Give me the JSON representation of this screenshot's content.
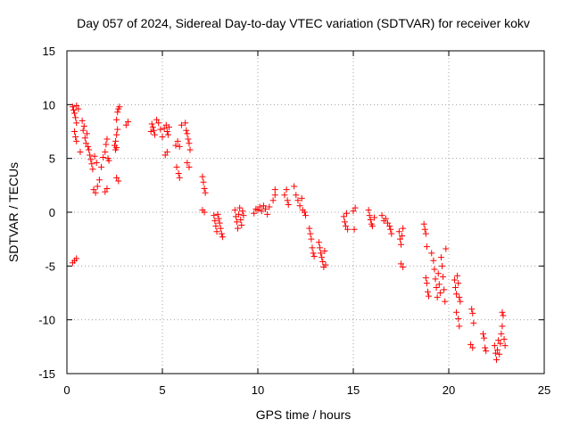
{
  "chart_data": {
    "type": "scatter",
    "title": "Day 057 of 2024, Sidereal Day-to-day VTEC variation (SDTVAR) for receiver kokv",
    "xlabel": "GPS time / hours",
    "ylabel": "SDTVAR / TECUs",
    "xlim": [
      0,
      25
    ],
    "ylim": [
      -15,
      15
    ],
    "xticks": [
      0,
      5,
      10,
      15,
      20,
      25
    ],
    "xtick_labels": [
      "0",
      "5",
      "10",
      "15",
      "20",
      "25"
    ],
    "yticks": [
      15,
      10,
      5,
      0,
      -5,
      -10,
      -15
    ],
    "ytick_labels": [
      "15",
      "10",
      "5",
      "0",
      "-5",
      "-10",
      "-15"
    ],
    "grid": true,
    "marker": "+",
    "color": "#ff0000",
    "series": [
      {
        "name": "SDTVAR",
        "points": [
          [
            0.3,
            9.8
          ],
          [
            0.35,
            9.5
          ],
          [
            0.4,
            9.2
          ],
          [
            0.45,
            8.8
          ],
          [
            0.5,
            8.3
          ],
          [
            0.4,
            7.5
          ],
          [
            0.45,
            7.0
          ],
          [
            0.5,
            6.6
          ],
          [
            0.5,
            9.9
          ],
          [
            0.6,
            9.6
          ],
          [
            0.3,
            -4.7
          ],
          [
            0.4,
            -4.5
          ],
          [
            0.5,
            -4.3
          ],
          [
            0.7,
            5.6
          ],
          [
            0.8,
            8.5
          ],
          [
            0.9,
            8.0
          ],
          [
            0.85,
            7.6
          ],
          [
            0.95,
            6.9
          ],
          [
            1.0,
            6.4
          ],
          [
            1.05,
            7.3
          ],
          [
            1.1,
            6.1
          ],
          [
            1.15,
            5.8
          ],
          [
            1.2,
            5.3
          ],
          [
            1.25,
            4.9
          ],
          [
            1.3,
            4.5
          ],
          [
            1.35,
            4.0
          ],
          [
            1.4,
            2.1
          ],
          [
            1.5,
            1.8
          ],
          [
            1.45,
            5.2
          ],
          [
            1.55,
            4.6
          ],
          [
            1.6,
            2.4
          ],
          [
            1.7,
            3.0
          ],
          [
            1.8,
            4.2
          ],
          [
            1.9,
            5.1
          ],
          [
            2.0,
            5.6
          ],
          [
            2.05,
            6.3
          ],
          [
            2.1,
            6.8
          ],
          [
            2.0,
            1.9
          ],
          [
            2.1,
            2.2
          ],
          [
            2.15,
            5.0
          ],
          [
            2.2,
            4.8
          ],
          [
            2.5,
            6.2
          ],
          [
            2.55,
            6.6
          ],
          [
            2.6,
            7.2
          ],
          [
            2.65,
            7.7
          ],
          [
            2.6,
            8.6
          ],
          [
            2.65,
            9.3
          ],
          [
            2.7,
            9.6
          ],
          [
            2.75,
            9.8
          ],
          [
            2.6,
            3.2
          ],
          [
            2.7,
            2.9
          ],
          [
            2.55,
            5.8
          ],
          [
            2.6,
            6.0
          ],
          [
            3.1,
            8.1
          ],
          [
            3.2,
            8.4
          ],
          [
            4.4,
            7.5
          ],
          [
            4.45,
            8.2
          ],
          [
            4.5,
            7.9
          ],
          [
            4.55,
            7.6
          ],
          [
            4.6,
            7.2
          ],
          [
            4.7,
            8.6
          ],
          [
            4.8,
            8.3
          ],
          [
            4.9,
            7.7
          ],
          [
            5.0,
            7.0
          ],
          [
            5.1,
            7.8
          ],
          [
            5.2,
            8.1
          ],
          [
            5.25,
            7.5
          ],
          [
            5.3,
            7.2
          ],
          [
            5.35,
            7.9
          ],
          [
            5.15,
            5.3
          ],
          [
            5.25,
            5.6
          ],
          [
            5.7,
            6.2
          ],
          [
            5.8,
            6.6
          ],
          [
            5.9,
            6.1
          ],
          [
            5.75,
            4.2
          ],
          [
            5.85,
            3.6
          ],
          [
            5.9,
            3.2
          ],
          [
            6.0,
            8.1
          ],
          [
            6.2,
            8.3
          ],
          [
            6.25,
            7.6
          ],
          [
            6.3,
            7.3
          ],
          [
            6.35,
            6.8
          ],
          [
            6.4,
            6.4
          ],
          [
            6.45,
            5.8
          ],
          [
            6.3,
            4.6
          ],
          [
            6.4,
            4.2
          ],
          [
            7.1,
            3.3
          ],
          [
            7.15,
            2.8
          ],
          [
            7.2,
            2.2
          ],
          [
            7.25,
            1.8
          ],
          [
            7.1,
            0.2
          ],
          [
            7.2,
            0.0
          ],
          [
            7.7,
            -0.3
          ],
          [
            7.75,
            -0.8
          ],
          [
            7.8,
            -1.3
          ],
          [
            7.85,
            -1.8
          ],
          [
            7.9,
            -0.2
          ],
          [
            7.95,
            -0.6
          ],
          [
            8.0,
            -1.0
          ],
          [
            8.05,
            -1.5
          ],
          [
            8.1,
            -2.0
          ],
          [
            8.15,
            -2.3
          ],
          [
            8.8,
            0.2
          ],
          [
            8.85,
            -0.4
          ],
          [
            8.9,
            -0.9
          ],
          [
            8.95,
            -1.5
          ],
          [
            9.0,
            -0.2
          ],
          [
            9.05,
            0.4
          ],
          [
            9.1,
            -0.7
          ],
          [
            9.15,
            -1.2
          ],
          [
            9.2,
            0.1
          ],
          [
            9.25,
            -0.3
          ],
          [
            9.8,
            -0.1
          ],
          [
            9.9,
            0.3
          ],
          [
            10.0,
            0.2
          ],
          [
            10.1,
            0.5
          ],
          [
            10.2,
            0.1
          ],
          [
            10.3,
            0.6
          ],
          [
            10.4,
            0.3
          ],
          [
            10.5,
            -0.2
          ],
          [
            10.6,
            0.5
          ],
          [
            10.8,
            1.1
          ],
          [
            10.9,
            1.6
          ],
          [
            10.9,
            2.1
          ],
          [
            11.4,
            1.6
          ],
          [
            11.5,
            2.1
          ],
          [
            11.55,
            1.1
          ],
          [
            11.6,
            0.7
          ],
          [
            11.9,
            2.4
          ],
          [
            12.0,
            1.6
          ],
          [
            12.1,
            1.1
          ],
          [
            12.2,
            0.6
          ],
          [
            12.3,
            1.3
          ],
          [
            12.35,
            0.2
          ],
          [
            12.45,
            0.0
          ],
          [
            12.5,
            -0.3
          ],
          [
            12.7,
            -1.5
          ],
          [
            12.75,
            -2.0
          ],
          [
            12.8,
            -2.5
          ],
          [
            12.85,
            -3.3
          ],
          [
            12.9,
            -3.8
          ],
          [
            12.95,
            -4.1
          ],
          [
            13.2,
            -2.8
          ],
          [
            13.25,
            -3.3
          ],
          [
            13.3,
            -3.8
          ],
          [
            13.35,
            -4.2
          ],
          [
            13.4,
            -4.6
          ],
          [
            13.45,
            -5.1
          ],
          [
            13.5,
            -3.6
          ],
          [
            13.55,
            -4.9
          ],
          [
            14.5,
            -0.4
          ],
          [
            14.55,
            -0.9
          ],
          [
            14.6,
            -1.3
          ],
          [
            14.65,
            -0.1
          ],
          [
            14.7,
            -1.6
          ],
          [
            15.0,
            0.1
          ],
          [
            15.1,
            0.4
          ],
          [
            15.05,
            -1.6
          ],
          [
            15.8,
            0.2
          ],
          [
            15.85,
            -0.3
          ],
          [
            15.9,
            -0.7
          ],
          [
            15.95,
            -1.1
          ],
          [
            16.0,
            -1.3
          ],
          [
            16.1,
            -0.5
          ],
          [
            16.5,
            -0.3
          ],
          [
            16.6,
            -0.8
          ],
          [
            16.7,
            -0.6
          ],
          [
            16.8,
            -1.0
          ],
          [
            16.9,
            -1.3
          ],
          [
            16.95,
            -1.6
          ],
          [
            17.0,
            -2.0
          ],
          [
            17.4,
            -1.8
          ],
          [
            17.45,
            -2.5
          ],
          [
            17.5,
            -3.0
          ],
          [
            17.55,
            -2.2
          ],
          [
            17.6,
            -1.5
          ],
          [
            17.5,
            -4.8
          ],
          [
            17.6,
            -5.1
          ],
          [
            18.7,
            -1.1
          ],
          [
            18.75,
            -1.6
          ],
          [
            18.8,
            -2.0
          ],
          [
            18.85,
            -3.2
          ],
          [
            18.8,
            -6.1
          ],
          [
            18.85,
            -6.6
          ],
          [
            18.9,
            -7.4
          ],
          [
            18.95,
            -7.8
          ],
          [
            19.1,
            -3.8
          ],
          [
            19.2,
            -4.5
          ],
          [
            19.25,
            -5.3
          ],
          [
            19.3,
            -6.2
          ],
          [
            19.35,
            -7.0
          ],
          [
            19.4,
            -7.9
          ],
          [
            19.45,
            -5.7
          ],
          [
            19.5,
            -6.7
          ],
          [
            19.55,
            -7.5
          ],
          [
            19.6,
            -4.2
          ],
          [
            19.65,
            -5.0
          ],
          [
            19.7,
            -6.0
          ],
          [
            19.75,
            -7.2
          ],
          [
            19.8,
            -8.3
          ],
          [
            19.85,
            -3.4
          ],
          [
            20.3,
            -6.3
          ],
          [
            20.35,
            -7.0
          ],
          [
            20.4,
            -7.6
          ],
          [
            20.45,
            -5.9
          ],
          [
            20.5,
            -6.6
          ],
          [
            20.55,
            -7.9
          ],
          [
            20.4,
            -9.3
          ],
          [
            20.5,
            -9.9
          ],
          [
            20.55,
            -10.6
          ],
          [
            20.6,
            -8.3
          ],
          [
            21.2,
            -9.0
          ],
          [
            21.25,
            -9.4
          ],
          [
            21.3,
            -10.3
          ],
          [
            21.15,
            -12.3
          ],
          [
            21.25,
            -12.6
          ],
          [
            21.8,
            -11.3
          ],
          [
            21.85,
            -11.7
          ],
          [
            21.9,
            -12.6
          ],
          [
            21.95,
            -12.9
          ],
          [
            22.4,
            -12.4
          ],
          [
            22.45,
            -13.1
          ],
          [
            22.5,
            -13.7
          ],
          [
            22.55,
            -12.8
          ],
          [
            22.6,
            -11.9
          ],
          [
            22.65,
            -13.2
          ],
          [
            22.7,
            -12.2
          ],
          [
            22.75,
            -11.3
          ],
          [
            22.8,
            -10.6
          ],
          [
            22.85,
            -9.6
          ],
          [
            22.8,
            -9.3
          ],
          [
            22.9,
            -11.8
          ],
          [
            22.95,
            -12.4
          ]
        ]
      }
    ]
  }
}
